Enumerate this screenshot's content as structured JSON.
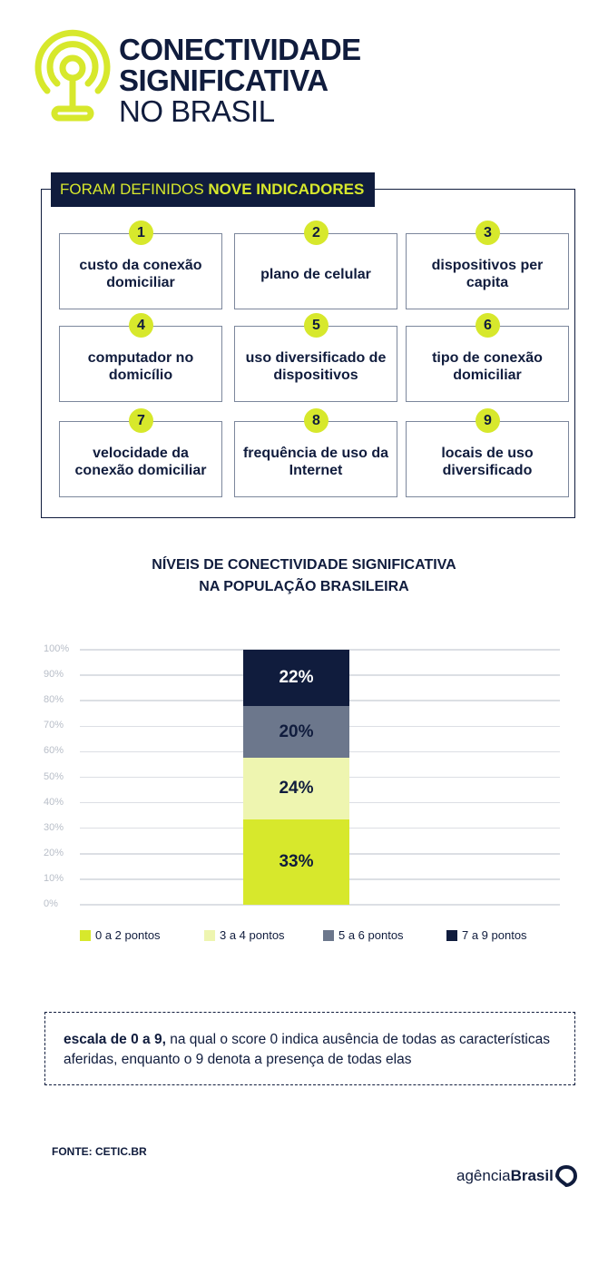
{
  "header": {
    "title_line1": "CONECTIVIDADE",
    "title_line2": "SIGNIFICATIVA",
    "title_line3": "NO BRASIL",
    "icon": "antenna-signal-icon"
  },
  "indicators": {
    "label_prefix": "FORAM DEFINIDOS ",
    "label_bold": "NOVE INDICADORES",
    "items": [
      {
        "number": "1",
        "text": "custo da conexão domiciliar"
      },
      {
        "number": "2",
        "text": "plano de celular"
      },
      {
        "number": "3",
        "text": "dispositivos per capita"
      },
      {
        "number": "4",
        "text": "computador no domicílio"
      },
      {
        "number": "5",
        "text": "uso diversificado de dispositivos"
      },
      {
        "number": "6",
        "text": "tipo de conexão domiciliar"
      },
      {
        "number": "7",
        "text": "velocidade da conexão domiciliar"
      },
      {
        "number": "8",
        "text": "frequência de uso da Internet"
      },
      {
        "number": "9",
        "text": "locais de uso diversificado"
      }
    ]
  },
  "chart_data": {
    "type": "bar",
    "stacked": true,
    "title": "NÍVEIS DE CONECTIVIDADE SIGNIFICATIVA NA POPULAÇÃO BRASILEIRA",
    "title_line1": "NÍVEIS DE CONECTIVIDADE SIGNIFICATIVA",
    "title_line2": "NA POPULAÇÃO BRASILEIRA",
    "ylim": [
      0,
      100
    ],
    "yticks": [
      "0%",
      "10%",
      "20%",
      "30%",
      "40%",
      "50%",
      "60%",
      "70%",
      "80%",
      "90%",
      "100%"
    ],
    "grid": true,
    "legend_position": "bottom",
    "series": [
      {
        "name": "0 a 2 pontos",
        "value": 33,
        "label": "33%",
        "color": "#d7e82c",
        "label_color": "#101c3d"
      },
      {
        "name": "3 a 4 pontos",
        "value": 24,
        "label": "24%",
        "color": "#eef5b0",
        "label_color": "#101c3d"
      },
      {
        "name": "5 a 6 pontos",
        "value": 20,
        "label": "20%",
        "color": "#6c778c",
        "label_color": "#101c3d"
      },
      {
        "name": "7 a 9 pontos",
        "value": 22,
        "label": "22%",
        "color": "#101c3d",
        "label_color": "#ffffff"
      }
    ]
  },
  "note": {
    "bold": "escala de 0 a 9,",
    "text": " na qual o score 0 indica ausência de todas as características aferidas, enquanto o 9 denota a presença de todas elas"
  },
  "source": "FONTE: CETIC.BR",
  "brand": {
    "light": "agência",
    "bold": "Brasil",
    "icon": "agencia-brasil-logo-icon"
  },
  "colors": {
    "navy": "#101c3d",
    "lime": "#d7e82c"
  }
}
